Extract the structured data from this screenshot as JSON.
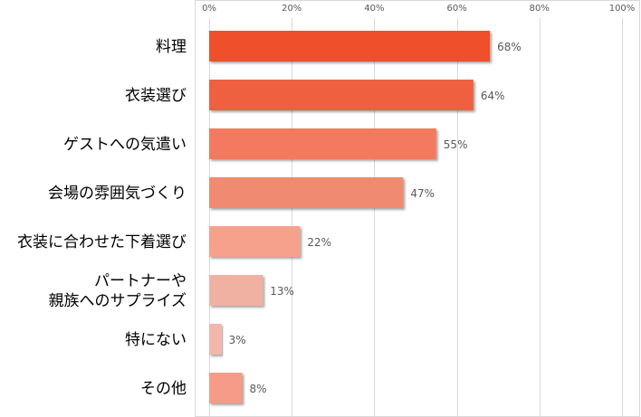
{
  "chart_data": {
    "type": "bar",
    "orientation": "horizontal",
    "categories": [
      [
        "料理"
      ],
      [
        "衣装選び"
      ],
      [
        "ゲストへの気遣い"
      ],
      [
        "会場の雰囲気づくり"
      ],
      [
        "衣装に合わせた下着選び"
      ],
      [
        "パートナーや",
        "親族へのサプライズ"
      ],
      [
        "特にない"
      ],
      [
        "その他"
      ]
    ],
    "values": [
      68,
      64,
      55,
      47,
      22,
      13,
      3,
      8
    ],
    "value_labels": [
      "68%",
      "64%",
      "55%",
      "47%",
      "22%",
      "13%",
      "3%",
      "8%"
    ],
    "bar_colors": [
      "#EF4F2C",
      "#EE613F",
      "#F37A5E",
      "#F08A71",
      "#F5A18C",
      "#F1B1A2",
      "#F1B7AB",
      "#F59B87"
    ],
    "x_ticks": [
      0,
      20,
      40,
      60,
      80,
      100
    ],
    "x_tick_labels": [
      "0%",
      "20%",
      "40%",
      "60%",
      "80%",
      "100%"
    ],
    "xlim": [
      0,
      100
    ],
    "grid": true,
    "title": "",
    "xlabel": "",
    "ylabel": ""
  }
}
